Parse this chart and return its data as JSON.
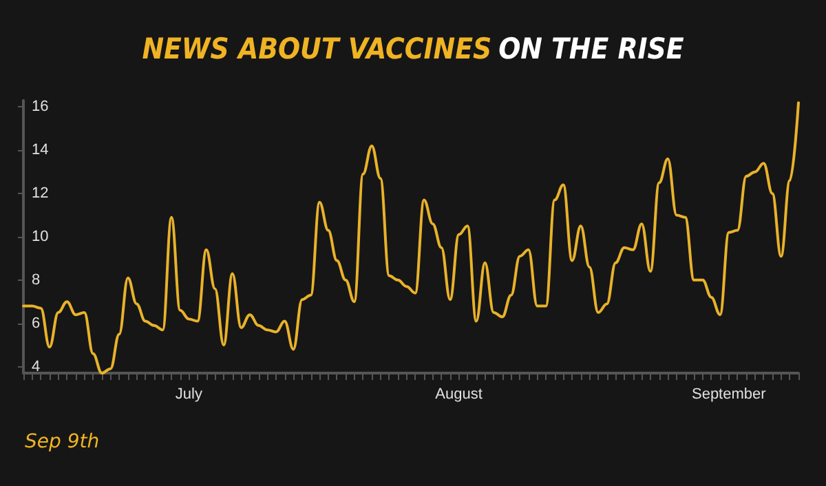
{
  "chart_data": {
    "type": "line",
    "title": "NEWS ABOUT VACCINES ON THE RISE",
    "x": [
      "--06-12",
      "--06-13",
      "--06-14",
      "--06-15",
      "--06-16",
      "--06-17",
      "--06-18",
      "--06-19",
      "--06-20",
      "--06-21",
      "--06-22",
      "--06-23",
      "--06-24",
      "--06-25",
      "--06-26",
      "--06-27",
      "--06-28",
      "--06-29",
      "--06-30",
      "--07-01",
      "--07-02",
      "--07-03",
      "--07-04",
      "--07-05",
      "--07-06",
      "--07-07",
      "--07-08",
      "--07-09",
      "--07-10",
      "--07-11",
      "--07-12",
      "--07-13",
      "--07-14",
      "--07-15",
      "--07-16",
      "--07-17",
      "--07-18",
      "--07-19",
      "--07-20",
      "--07-21",
      "--07-22",
      "--07-23",
      "--07-24",
      "--07-25",
      "--07-26",
      "--07-27",
      "--07-28",
      "--07-29",
      "--07-30",
      "--07-31",
      "--08-01",
      "--08-02",
      "--08-03",
      "--08-04",
      "--08-05",
      "--08-06",
      "--08-07",
      "--08-08",
      "--08-09",
      "--08-10",
      "--08-11",
      "--08-12",
      "--08-13",
      "--08-14",
      "--08-15",
      "--08-16",
      "--08-17",
      "--08-18",
      "--08-19",
      "--08-20",
      "--08-21",
      "--08-22",
      "--08-23",
      "--08-24",
      "--08-25",
      "--08-26",
      "--08-27",
      "--08-28",
      "--08-29",
      "--08-30",
      "--08-31",
      "--09-01",
      "--09-02",
      "--09-03",
      "--09-04",
      "--09-05",
      "--09-06",
      "--09-07",
      "--09-08",
      "--09-09"
    ],
    "series": [
      {
        "color": "#e8b22a",
        "values": [
          6.8,
          6.8,
          6.7,
          4.9,
          6.5,
          7.0,
          6.4,
          6.5,
          4.6,
          3.7,
          3.9,
          5.5,
          8.1,
          6.9,
          6.1,
          5.9,
          5.7,
          10.9,
          6.6,
          6.2,
          6.1,
          9.4,
          7.6,
          5.0,
          8.3,
          5.8,
          6.4,
          5.9,
          5.7,
          5.6,
          6.1,
          4.8,
          7.1,
          7.3,
          11.6,
          10.3,
          8.9,
          8.0,
          7.0,
          12.9,
          14.2,
          12.7,
          8.2,
          8.0,
          7.7,
          7.4,
          11.7,
          10.6,
          9.5,
          7.1,
          10.1,
          10.5,
          6.1,
          8.8,
          6.5,
          6.3,
          7.3,
          9.1,
          9.4,
          6.8,
          6.8,
          11.7,
          12.4,
          8.9,
          10.5,
          8.6,
          6.5,
          6.9,
          8.8,
          9.5,
          9.4,
          10.6,
          8.4,
          12.5,
          13.6,
          11.0,
          10.9,
          8.0,
          8.0,
          7.2,
          6.4,
          10.2,
          10.3,
          12.8,
          13.0,
          13.4,
          12.0,
          9.1,
          12.6,
          16.2
        ]
      }
    ],
    "xlim": [
      "--06-12",
      "--09-09"
    ],
    "xticks": [
      {
        "value": "--06-12",
        "label": null
      },
      {
        "value": "--06-13",
        "label": null
      },
      {
        "value": "--06-14",
        "label": null
      },
      {
        "value": "--06-15",
        "label": null
      },
      {
        "value": "--06-16",
        "label": null
      },
      {
        "value": "--06-17",
        "label": null
      },
      {
        "value": "--06-18",
        "label": null
      },
      {
        "value": "--06-19",
        "label": null
      },
      {
        "value": "--06-20",
        "label": null
      },
      {
        "value": "--06-21",
        "label": null
      },
      {
        "value": "--06-22",
        "label": null
      },
      {
        "value": "--06-23",
        "label": null
      },
      {
        "value": "--06-24",
        "label": null
      },
      {
        "value": "--06-25",
        "label": null
      },
      {
        "value": "--06-26",
        "label": null
      },
      {
        "value": "--06-27",
        "label": null
      },
      {
        "value": "--06-28",
        "label": null
      },
      {
        "value": "--06-29",
        "label": null
      },
      {
        "value": "--06-30",
        "label": null
      },
      {
        "value": "--07-01",
        "label": "July"
      },
      {
        "value": "--07-02",
        "label": null
      },
      {
        "value": "--07-03",
        "label": null
      },
      {
        "value": "--07-04",
        "label": null
      },
      {
        "value": "--07-05",
        "label": null
      },
      {
        "value": "--07-06",
        "label": null
      },
      {
        "value": "--07-07",
        "label": null
      },
      {
        "value": "--07-08",
        "label": null
      },
      {
        "value": "--07-09",
        "label": null
      },
      {
        "value": "--07-10",
        "label": null
      },
      {
        "value": "--07-11",
        "label": null
      },
      {
        "value": "--07-12",
        "label": null
      },
      {
        "value": "--07-13",
        "label": null
      },
      {
        "value": "--07-14",
        "label": null
      },
      {
        "value": "--07-15",
        "label": null
      },
      {
        "value": "--07-16",
        "label": null
      },
      {
        "value": "--07-17",
        "label": null
      },
      {
        "value": "--07-18",
        "label": null
      },
      {
        "value": "--07-19",
        "label": null
      },
      {
        "value": "--07-20",
        "label": null
      },
      {
        "value": "--07-21",
        "label": null
      },
      {
        "value": "--07-22",
        "label": null
      },
      {
        "value": "--07-23",
        "label": null
      },
      {
        "value": "--07-24",
        "label": null
      },
      {
        "value": "--07-25",
        "label": null
      },
      {
        "value": "--07-26",
        "label": null
      },
      {
        "value": "--07-27",
        "label": null
      },
      {
        "value": "--07-28",
        "label": null
      },
      {
        "value": "--07-29",
        "label": null
      },
      {
        "value": "--07-30",
        "label": null
      },
      {
        "value": "--07-31",
        "label": null
      },
      {
        "value": "--08-01",
        "label": "August"
      },
      {
        "value": "--08-02",
        "label": null
      },
      {
        "value": "--08-03",
        "label": null
      },
      {
        "value": "--08-04",
        "label": null
      },
      {
        "value": "--08-05",
        "label": null
      },
      {
        "value": "--08-06",
        "label": null
      },
      {
        "value": "--08-07",
        "label": null
      },
      {
        "value": "--08-08",
        "label": null
      },
      {
        "value": "--08-09",
        "label": null
      },
      {
        "value": "--08-10",
        "label": null
      },
      {
        "value": "--08-11",
        "label": null
      },
      {
        "value": "--08-12",
        "label": null
      },
      {
        "value": "--08-13",
        "label": null
      },
      {
        "value": "--08-14",
        "label": null
      },
      {
        "value": "--08-15",
        "label": null
      },
      {
        "value": "--08-16",
        "label": null
      },
      {
        "value": "--08-17",
        "label": null
      },
      {
        "value": "--08-18",
        "label": null
      },
      {
        "value": "--08-19",
        "label": null
      },
      {
        "value": "--08-20",
        "label": null
      },
      {
        "value": "--08-21",
        "label": null
      },
      {
        "value": "--08-22",
        "label": null
      },
      {
        "value": "--08-23",
        "label": null
      },
      {
        "value": "--08-24",
        "label": null
      },
      {
        "value": "--08-25",
        "label": null
      },
      {
        "value": "--08-26",
        "label": null
      },
      {
        "value": "--08-27",
        "label": null
      },
      {
        "value": "--08-28",
        "label": null
      },
      {
        "value": "--08-29",
        "label": null
      },
      {
        "value": "--08-30",
        "label": null
      },
      {
        "value": "--08-31",
        "label": null
      },
      {
        "value": "--09-01",
        "label": "September"
      },
      {
        "value": "--09-02",
        "label": null
      },
      {
        "value": "--09-03",
        "label": null
      },
      {
        "value": "--09-04",
        "label": null
      },
      {
        "value": "--09-05",
        "label": null
      },
      {
        "value": "--09-06",
        "label": null
      },
      {
        "value": "--09-07",
        "label": null
      },
      {
        "value": "--09-08",
        "label": null
      },
      {
        "value": "--09-09",
        "label": null
      }
    ],
    "ylim": [
      3.7,
      16.3
    ],
    "yticks": [
      4,
      6,
      8,
      10,
      12,
      14,
      16
    ],
    "grid": false,
    "marker": "none",
    "line_style": "solid",
    "annotations": [
      "Sep 9th"
    ]
  }
}
